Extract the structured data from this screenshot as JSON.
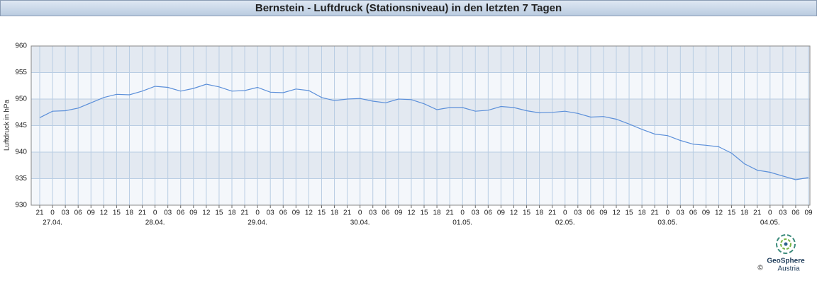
{
  "chart_data": {
    "type": "line",
    "title": "Bernstein - Luftdruck (Stationsniveau) in den letzten 7 Tagen",
    "y_label": "Luftdruck in hPa",
    "categories": [
      "21",
      "0",
      "03",
      "06",
      "09",
      "12",
      "15",
      "18",
      "21",
      "0",
      "03",
      "06",
      "09",
      "12",
      "15",
      "18",
      "21",
      "0",
      "03",
      "06",
      "09",
      "12",
      "15",
      "18",
      "21",
      "0",
      "03",
      "06",
      "09",
      "12",
      "15",
      "18",
      "21",
      "0",
      "03",
      "06",
      "09",
      "12",
      "15",
      "18",
      "21",
      "0",
      "03",
      "06",
      "09",
      "12",
      "15",
      "18",
      "21",
      "0",
      "03",
      "06",
      "09",
      "12",
      "15",
      "18",
      "21",
      "0",
      "03",
      "06",
      "09"
    ],
    "date_labels": [
      null,
      "27.04.",
      null,
      null,
      null,
      null,
      null,
      null,
      null,
      "28.04.",
      null,
      null,
      null,
      null,
      null,
      null,
      null,
      "29.04.",
      null,
      null,
      null,
      null,
      null,
      null,
      null,
      "30.04.",
      null,
      null,
      null,
      null,
      null,
      null,
      null,
      "01.05.",
      null,
      null,
      null,
      null,
      null,
      null,
      null,
      "02.05.",
      null,
      null,
      null,
      null,
      null,
      null,
      null,
      "03.05.",
      null,
      null,
      null,
      null,
      null,
      null,
      null,
      "04.05.",
      null,
      null,
      null
    ],
    "values": [
      946.5,
      947.7,
      947.8,
      948.3,
      949.3,
      950.3,
      950.9,
      950.8,
      951.5,
      952.4,
      952.2,
      951.5,
      952.0,
      952.8,
      952.3,
      951.5,
      951.6,
      952.2,
      951.3,
      951.2,
      951.9,
      951.6,
      950.3,
      949.7,
      950.0,
      950.1,
      949.6,
      949.3,
      950.0,
      949.9,
      949.1,
      948.0,
      948.4,
      948.4,
      947.7,
      947.9,
      948.6,
      948.4,
      947.8,
      947.4,
      947.5,
      947.7,
      947.3,
      946.6,
      946.7,
      946.2,
      945.3,
      944.3,
      943.4,
      943.1,
      942.2,
      941.5,
      941.3,
      941.0,
      939.8,
      937.8,
      936.6,
      936.2,
      935.5,
      934.8,
      935.2
    ],
    "color": "#5b8fd9",
    "ylim": [
      930,
      960
    ],
    "yticks": [
      930,
      935,
      940,
      945,
      950,
      955,
      960
    ],
    "grid": true,
    "logo": {
      "name": "GeoSphere",
      "sub": "Austria",
      "copyright": "©"
    }
  }
}
